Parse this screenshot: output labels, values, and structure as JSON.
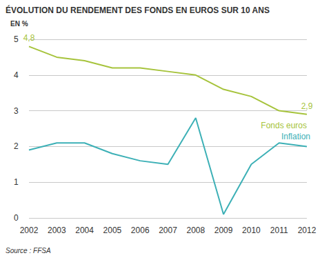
{
  "chart_data": {
    "type": "line",
    "title": "ÉVOLUTION DU RENDEMENT DES FONDS EN EUROS SUR 10 ANS",
    "y_label": "EN %",
    "source": "Source : FFSA",
    "categories": [
      "2002",
      "2003",
      "2004",
      "2005",
      "2006",
      "2007",
      "2008",
      "2009",
      "2010",
      "2011",
      "2012"
    ],
    "series": [
      {
        "name": "Fonds euros",
        "color": "#a6c33b",
        "values": [
          4.8,
          4.5,
          4.4,
          4.2,
          4.2,
          4.1,
          4.0,
          3.6,
          3.4,
          3.0,
          2.9
        ],
        "value_labels": [
          "4,8",
          null,
          null,
          null,
          null,
          null,
          null,
          null,
          null,
          null,
          "2,9"
        ]
      },
      {
        "name": "Inflation",
        "color": "#3cb0b6",
        "values": [
          1.9,
          2.1,
          2.1,
          1.8,
          1.6,
          1.5,
          2.8,
          0.1,
          1.5,
          2.1,
          2.0
        ]
      }
    ],
    "ylim": [
      0,
      5
    ],
    "yticks": [
      0,
      1,
      2,
      3,
      4,
      5
    ],
    "grid": true
  }
}
